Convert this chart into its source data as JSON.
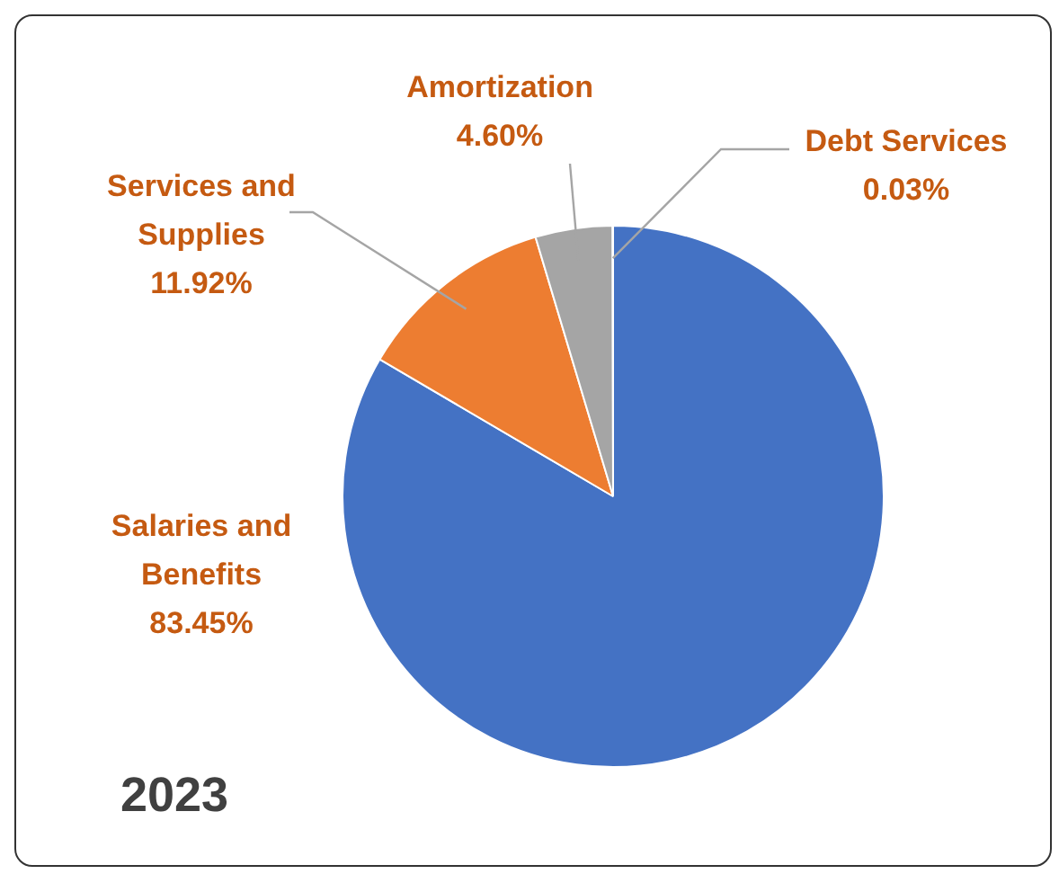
{
  "chart_data": {
    "type": "pie",
    "title": "2023",
    "categories": [
      "Salaries and Benefits",
      "Services and Supplies",
      "Amortization",
      "Debt Services"
    ],
    "values": [
      83.45,
      11.92,
      4.6,
      0.03
    ],
    "value_labels": [
      "83.45%",
      "11.92%",
      "4.60%",
      "0.03%"
    ],
    "colors": [
      "#4472c4",
      "#ed7d31",
      "#a5a5a5",
      "#ffc000"
    ]
  }
}
